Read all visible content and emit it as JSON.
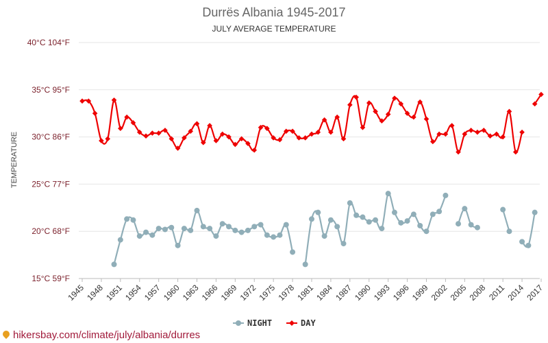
{
  "chart_data": {
    "type": "line",
    "title": "Durrës Albania 1945-2017",
    "subtitle": "JULY AVERAGE TEMPERATURE",
    "ylabel": "TEMPERATURE",
    "ylim": [
      15,
      40
    ],
    "yticks": [
      {
        "value": 15,
        "label": "15°C 59°F"
      },
      {
        "value": 20,
        "label": "20°C 68°F"
      },
      {
        "value": 25,
        "label": "25°C 77°F"
      },
      {
        "value": 30,
        "label": "30°C 86°F"
      },
      {
        "value": 35,
        "label": "35°C 95°F"
      },
      {
        "value": 40,
        "label": "40°C 104°F"
      }
    ],
    "xlim": [
      1945,
      2017
    ],
    "xticks": [
      "1945",
      "1948",
      "1951",
      "1954",
      "1957",
      "1960",
      "1963",
      "1966",
      "1969",
      "1972",
      "1975",
      "1978",
      "1981",
      "1984",
      "1987",
      "1990",
      "1993",
      "1996",
      "1999",
      "2002",
      "2005",
      "2008",
      "2011",
      "2014",
      "2017"
    ],
    "grid": true,
    "legend_position": "bottom",
    "x": [
      1945,
      1946,
      1947,
      1948,
      1949,
      1950,
      1951,
      1952,
      1953,
      1954,
      1955,
      1956,
      1957,
      1958,
      1959,
      1960,
      1961,
      1962,
      1963,
      1964,
      1965,
      1966,
      1967,
      1968,
      1969,
      1970,
      1971,
      1972,
      1973,
      1974,
      1975,
      1976,
      1977,
      1978,
      1979,
      1980,
      1981,
      1982,
      1983,
      1984,
      1985,
      1986,
      1987,
      1988,
      1989,
      1990,
      1991,
      1992,
      1993,
      1994,
      1995,
      1996,
      1997,
      1998,
      1999,
      2000,
      2001,
      2002,
      2003,
      2004,
      2005,
      2006,
      2007,
      2008,
      2009,
      2010,
      2011,
      2012,
      2013,
      2014,
      2015,
      2016,
      2017
    ],
    "series": [
      {
        "name": "NIGHT",
        "color": "#90aeb8",
        "marker": "circle",
        "values": [
          null,
          null,
          null,
          null,
          null,
          16.5,
          19.1,
          21.3,
          21.2,
          19.5,
          19.9,
          19.6,
          20.3,
          20.2,
          20.4,
          18.5,
          20.3,
          20.1,
          22.2,
          20.5,
          20.3,
          19.5,
          20.8,
          20.5,
          20.1,
          19.9,
          20.1,
          20.5,
          20.7,
          19.6,
          19.4,
          19.6,
          20.7,
          17.8,
          null,
          16.5,
          21.3,
          22.0,
          19.5,
          21.2,
          20.5,
          18.7,
          23.0,
          21.7,
          21.5,
          21.0,
          21.2,
          20.3,
          24.0,
          22.0,
          20.9,
          21.1,
          21.8,
          20.6,
          20.0,
          21.8,
          22.1,
          23.8,
          null,
          20.8,
          22.4,
          20.7,
          20.4,
          null,
          null,
          null,
          22.3,
          20.0,
          null,
          18.9,
          18.5,
          22.0,
          null
        ]
      },
      {
        "name": "DAY",
        "color": "#ee0000",
        "marker": "diamond",
        "values": [
          33.8,
          33.8,
          32.5,
          29.6,
          29.8,
          33.9,
          30.9,
          32.1,
          31.5,
          30.5,
          30.1,
          30.4,
          30.4,
          30.7,
          29.8,
          28.8,
          29.9,
          30.6,
          31.4,
          29.4,
          31.2,
          29.6,
          30.3,
          30.0,
          29.2,
          29.8,
          29.3,
          28.6,
          31.0,
          30.9,
          29.9,
          29.7,
          30.6,
          30.6,
          29.9,
          29.9,
          30.3,
          30.5,
          31.8,
          30.5,
          32.1,
          29.8,
          33.4,
          34.2,
          31.0,
          33.6,
          32.7,
          31.7,
          32.4,
          34.1,
          33.5,
          32.5,
          32.1,
          33.7,
          31.9,
          29.5,
          30.3,
          30.3,
          31.2,
          28.4,
          30.3,
          30.7,
          30.5,
          30.7,
          30.1,
          30.3,
          30.0,
          32.7,
          28.4,
          30.5,
          null,
          33.5,
          34.5
        ]
      }
    ]
  },
  "footer": {
    "site": "hikersbay.com/climate/july/albania/durres"
  }
}
